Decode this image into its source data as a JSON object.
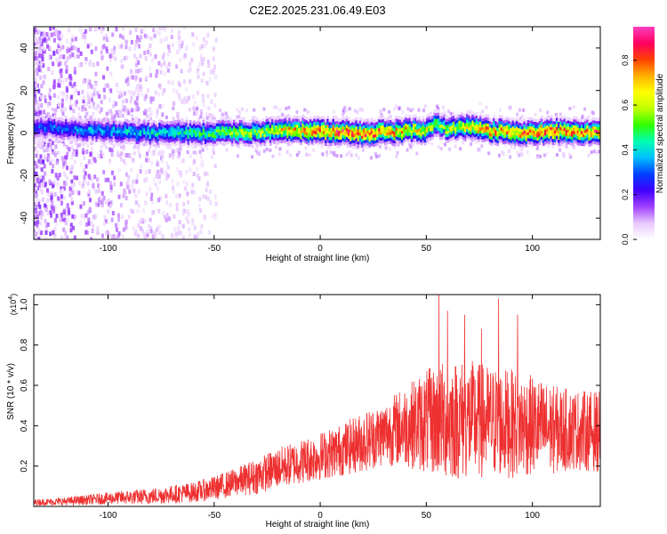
{
  "title": "C2E2.2025.231.06.49.E03",
  "chart_data": [
    {
      "type": "heatmap",
      "xlabel": "Height of straight line (km)",
      "ylabel": "Frequency (Hz)",
      "xlim": [
        -135,
        132
      ],
      "ylim": [
        -50,
        50
      ],
      "xticks": [
        -100,
        -50,
        0,
        50,
        100
      ],
      "yticks": [
        -40,
        -20,
        0,
        20,
        40
      ],
      "colorbar": {
        "label": "Normalized spectral amplitude",
        "range": [
          0,
          0.95
        ],
        "ticks": [
          0.0,
          0.2,
          0.4,
          0.6,
          0.8
        ],
        "colormap": [
          "#ffffff",
          "#e8c8ff",
          "#a040ff",
          "#4000ff",
          "#0040ff",
          "#00c0ff",
          "#00ffb0",
          "#30ff00",
          "#c0ff00",
          "#ffff00",
          "#ffb000",
          "#ff4000",
          "#ff0060",
          "#ff40c0"
        ]
      },
      "ridge": {
        "x": [
          -135,
          -120,
          -100,
          -80,
          -60,
          -40,
          -20,
          0,
          20,
          40,
          50,
          55,
          60,
          72,
          80,
          100,
          110,
          132
        ],
        "frequency": [
          3,
          2,
          1,
          0,
          0,
          0,
          1,
          1,
          0,
          1,
          1,
          4,
          2,
          3,
          1,
          0,
          1,
          0
        ],
        "peak_amplitude": [
          0.3,
          0.35,
          0.4,
          0.45,
          0.5,
          0.6,
          0.7,
          0.9,
          0.92,
          0.75,
          0.7,
          0.6,
          0.65,
          0.75,
          0.8,
          0.85,
          0.9,
          0.85
        ]
      },
      "noise_region": {
        "x": [
          -135,
          -53
        ],
        "description_amplitude": 0.3
      }
    },
    {
      "type": "line",
      "xlabel": "Height of straight line (km)",
      "ylabel": "SNR (10 * v/v)",
      "yunit_multiplier": "(x10",
      "yunit_exponent": "4",
      "yunit_close": ")",
      "xlim": [
        -135,
        132
      ],
      "ylim": [
        0,
        1.05
      ],
      "xticks": [
        -100,
        -50,
        0,
        50,
        100
      ],
      "yticks": [
        0.2,
        0.4,
        0.6,
        0.8,
        1.0
      ],
      "color": "#ee3030",
      "envelope": {
        "x": [
          -135,
          -120,
          -100,
          -80,
          -60,
          -50,
          -40,
          -30,
          -20,
          -10,
          0,
          10,
          20,
          30,
          40,
          50,
          60,
          70,
          80,
          90,
          100,
          110,
          120,
          132
        ],
        "mean": [
          0.02,
          0.025,
          0.04,
          0.05,
          0.07,
          0.09,
          0.12,
          0.15,
          0.19,
          0.22,
          0.25,
          0.28,
          0.32,
          0.36,
          0.4,
          0.42,
          0.43,
          0.43,
          0.42,
          0.41,
          0.4,
          0.38,
          0.38,
          0.37
        ],
        "spread": [
          0.015,
          0.02,
          0.03,
          0.04,
          0.05,
          0.06,
          0.07,
          0.09,
          0.1,
          0.11,
          0.12,
          0.13,
          0.15,
          0.16,
          0.2,
          0.26,
          0.3,
          0.3,
          0.28,
          0.27,
          0.25,
          0.22,
          0.2,
          0.2
        ]
      },
      "peaks": [
        {
          "x": 56,
          "y": 1.05
        },
        {
          "x": 60,
          "y": 0.97
        },
        {
          "x": 68,
          "y": 0.95
        },
        {
          "x": 76,
          "y": 0.88
        },
        {
          "x": 84,
          "y": 1.03
        },
        {
          "x": 93,
          "y": 0.95
        }
      ]
    }
  ]
}
